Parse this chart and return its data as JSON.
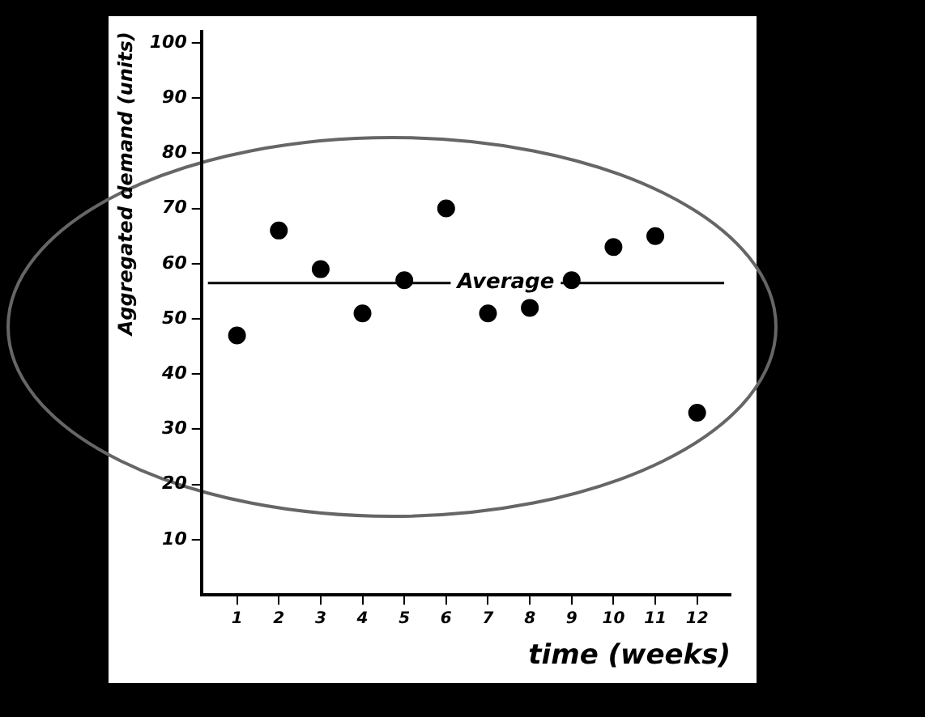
{
  "chart_data": {
    "type": "scatter",
    "xlabel": "time (weeks)",
    "ylabel": "Aggregated demand (units)",
    "x": [
      1,
      2,
      3,
      4,
      5,
      6,
      7,
      8,
      9,
      10,
      11,
      12
    ],
    "series": [
      {
        "color": "#000000",
        "values": [
          47,
          66,
          59,
          51,
          57,
          70,
          51,
          52,
          57,
          63,
          65,
          33
        ]
      }
    ],
    "xlim": [
      0.15,
      12.8
    ],
    "xticks": [
      1,
      2,
      3,
      4,
      5,
      6,
      7,
      8,
      9,
      10,
      11,
      12
    ],
    "ylim": [
      0,
      102
    ],
    "yticks": [
      10,
      20,
      30,
      40,
      50,
      60,
      70,
      80,
      90,
      100
    ],
    "ref_lines": [
      {
        "axis": "y",
        "value": 56.5,
        "label": "Average",
        "color": "#000000"
      }
    ],
    "marker": "circle",
    "grid": false,
    "legend": false
  }
}
